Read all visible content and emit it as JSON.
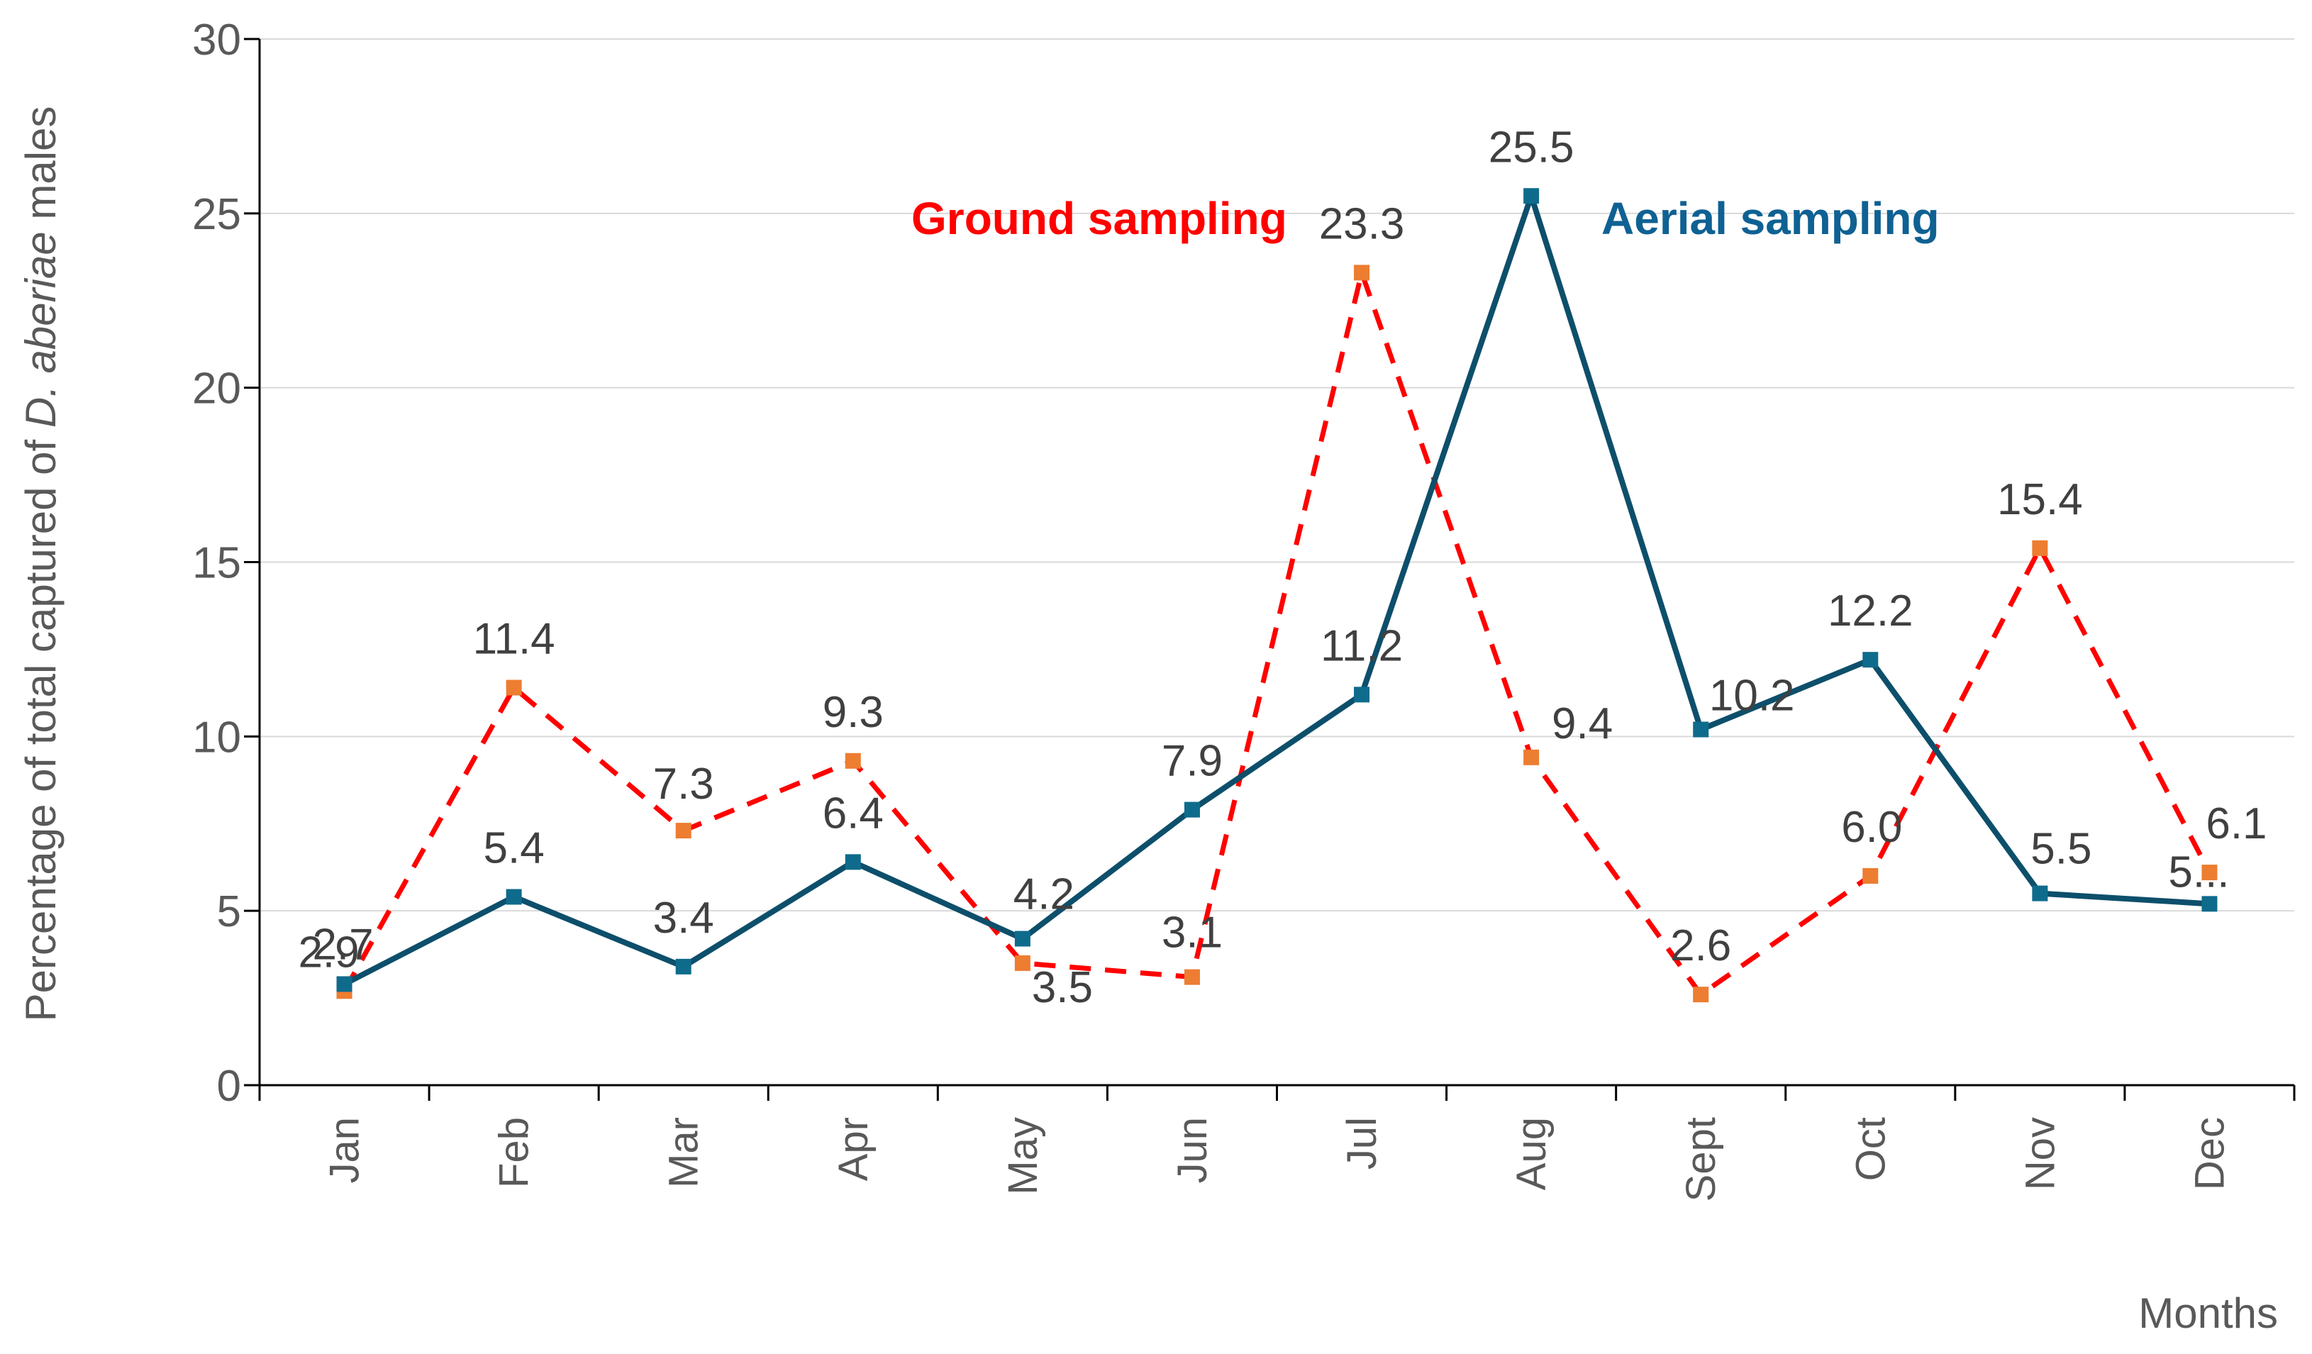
{
  "chart_data": {
    "type": "line",
    "title": "",
    "xlabel": "Months",
    "ylabel": {
      "prefix": "Percentage of total captured of ",
      "species": "D. aberiae",
      "suffix": " males"
    },
    "ylim": [
      0,
      30
    ],
    "yticks": [
      0,
      5,
      10,
      15,
      20,
      25,
      30
    ],
    "grid": true,
    "categories": [
      "Jan",
      "Feb",
      "Mar",
      "Apr",
      "May",
      "Jun",
      "Jul",
      "Aug",
      "Sept",
      "Oct",
      "Nov",
      "Dec"
    ],
    "series": [
      {
        "name": "Ground sampling",
        "color": "#FF0000",
        "marker_color": "#ED7D31",
        "style": "dashed",
        "values": [
          2.7,
          11.4,
          7.3,
          9.3,
          3.5,
          3.1,
          23.3,
          9.4,
          2.6,
          6.0,
          15.4,
          6.1
        ],
        "labels": [
          "2.7",
          "11.4",
          "7.3",
          "9.3",
          "3.5",
          "3.1",
          "23.3",
          "9.4",
          "2.6",
          "6.0",
          "15.4",
          "6.1"
        ]
      },
      {
        "name": "Aerial sampling",
        "color": "#0D4F6B",
        "label_color": "#0F6193",
        "marker_color": "#0F6B8C",
        "style": "solid",
        "values": [
          2.9,
          5.4,
          3.4,
          6.4,
          4.2,
          7.9,
          11.2,
          25.5,
          10.2,
          12.2,
          5.5,
          5.2
        ],
        "labels": [
          "2.9",
          "5.4",
          "3.4",
          "6.4",
          "4.2",
          "7.9",
          "11.2",
          "25.5",
          "10.2",
          "12.2",
          "5.5",
          "5..."
        ]
      }
    ]
  }
}
